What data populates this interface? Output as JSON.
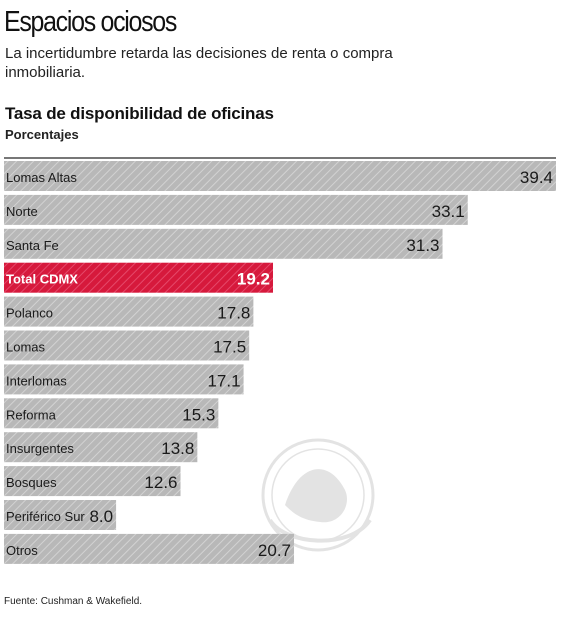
{
  "header": {
    "headline": "Espacios ociosos",
    "subhead": "La incertidumbre retarda las decisiones de renta o compra inmobiliaria."
  },
  "footer": {
    "source": "Fuente: Cushman & Wakefield."
  },
  "colors": {
    "bar": "#b8b8b8",
    "bar_hatch": "#d2d2d2",
    "highlight": "#d6193c",
    "highlight_hatch": "#e5486a",
    "text": "#1a1a1a",
    "row_divider": "#ffffff"
  },
  "chart_data": {
    "type": "bar",
    "orientation": "horizontal",
    "title": "Tasa de disponibilidad de oficinas",
    "unit": "Porcentajes",
    "categories": [
      "Lomas Altas",
      "Norte",
      "Santa Fe",
      "Total CDMX",
      "Polanco",
      "Lomas",
      "Interlomas",
      "Reforma",
      "Insurgentes",
      "Bosques",
      "Periférico Sur",
      "Otros"
    ],
    "values": [
      39.4,
      33.1,
      31.3,
      19.2,
      17.8,
      17.5,
      17.1,
      15.3,
      13.8,
      12.6,
      8.0,
      20.7
    ],
    "value_labels": [
      "39.4",
      "33.1",
      "31.3",
      "19.2",
      "17.8",
      "17.5",
      "17.1",
      "15.3",
      "13.8",
      "12.6",
      "8.0",
      "20.7"
    ],
    "highlight_category": "Total CDMX",
    "xlim": [
      0,
      39.4
    ],
    "grid": false,
    "legend": "none"
  }
}
